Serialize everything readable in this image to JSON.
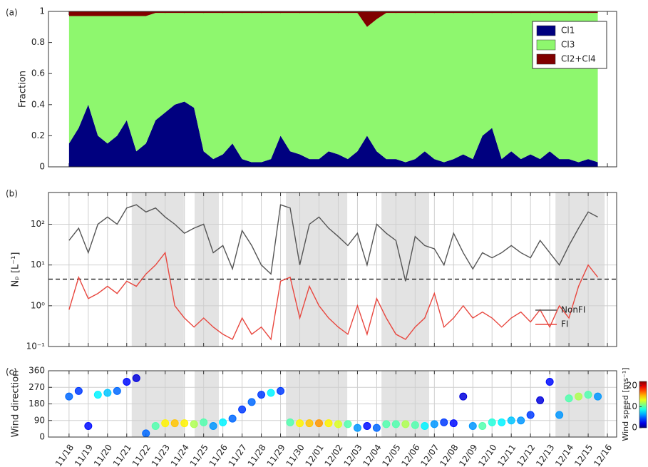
{
  "chart_data": [
    {
      "type": "area",
      "panel_label": "(a)",
      "ylabel": "Fraction",
      "x": [
        0,
        0.5,
        1,
        1.5,
        2,
        2.5,
        3,
        3.5,
        4,
        4.5,
        5,
        5.5,
        6,
        6.5,
        7,
        7.5,
        8,
        8.5,
        9,
        9.5,
        10,
        10.5,
        11,
        11.5,
        12,
        12.5,
        13,
        13.5,
        14,
        14.5,
        15,
        15.5,
        16,
        16.5,
        17,
        17.5,
        18,
        18.5,
        19,
        19.5,
        20,
        20.5,
        21,
        21.5,
        22,
        22.5,
        23,
        23.5,
        24,
        24.5,
        25,
        25.5,
        26,
        26.5,
        27,
        27.5
      ],
      "series": [
        {
          "name": "Cl1",
          "color": "#00007f",
          "values": [
            0.15,
            0.25,
            0.4,
            0.2,
            0.15,
            0.2,
            0.3,
            0.1,
            0.15,
            0.3,
            0.35,
            0.4,
            0.42,
            0.38,
            0.1,
            0.05,
            0.08,
            0.15,
            0.05,
            0.03,
            0.03,
            0.05,
            0.2,
            0.1,
            0.08,
            0.05,
            0.05,
            0.1,
            0.08,
            0.05,
            0.1,
            0.2,
            0.1,
            0.05,
            0.05,
            0.03,
            0.05,
            0.1,
            0.05,
            0.03,
            0.05,
            0.08,
            0.05,
            0.2,
            0.25,
            0.05,
            0.1,
            0.05,
            0.08,
            0.05,
            0.1,
            0.05,
            0.05,
            0.03,
            0.05,
            0.03
          ]
        },
        {
          "name": "Cl3",
          "color": "#8ef76e",
          "values": [
            0.82,
            0.72,
            0.57,
            0.77,
            0.82,
            0.77,
            0.67,
            0.87,
            0.82,
            0.69,
            0.64,
            0.59,
            0.57,
            0.61,
            0.89,
            0.94,
            0.91,
            0.84,
            0.94,
            0.96,
            0.96,
            0.94,
            0.79,
            0.89,
            0.91,
            0.94,
            0.94,
            0.89,
            0.91,
            0.94,
            0.89,
            0.7,
            0.85,
            0.94,
            0.94,
            0.96,
            0.94,
            0.89,
            0.94,
            0.96,
            0.94,
            0.91,
            0.94,
            0.79,
            0.74,
            0.94,
            0.89,
            0.94,
            0.91,
            0.94,
            0.89,
            0.94,
            0.94,
            0.96,
            0.94,
            0.96
          ]
        },
        {
          "name": "Cl2+Cl4",
          "color": "#800000",
          "values": [
            0.03,
            0.03,
            0.03,
            0.03,
            0.03,
            0.03,
            0.03,
            0.03,
            0.03,
            0.01,
            0.01,
            0.01,
            0.01,
            0.01,
            0.01,
            0.01,
            0.01,
            0.01,
            0.01,
            0.01,
            0.01,
            0.01,
            0.01,
            0.01,
            0.01,
            0.01,
            0.01,
            0.01,
            0.01,
            0.01,
            0.01,
            0.1,
            0.05,
            0.01,
            0.01,
            0.01,
            0.01,
            0.01,
            0.01,
            0.01,
            0.01,
            0.01,
            0.01,
            0.01,
            0.01,
            0.01,
            0.01,
            0.01,
            0.01,
            0.01,
            0.01,
            0.01,
            0.01,
            0.01,
            0.01,
            0.01
          ]
        }
      ],
      "xlim": [
        -1.07,
        28.48
      ],
      "xticks": [
        0,
        1,
        2,
        3,
        4,
        5,
        6,
        7,
        8,
        9,
        10,
        11,
        12,
        13,
        14,
        15,
        16,
        17,
        18,
        19,
        20,
        21,
        22,
        23,
        24,
        25,
        26,
        27,
        28
      ],
      "ylim": [
        0,
        1
      ],
      "yticks": [
        0,
        0.2,
        0.4,
        0.6,
        0.8,
        1
      ],
      "grid": false,
      "legend": "upper right"
    },
    {
      "type": "line",
      "panel_label": "(b)",
      "ylabel": "Nₚ [L⁻¹]",
      "log_y": true,
      "x": [
        0,
        0.5,
        1,
        1.5,
        2,
        2.5,
        3,
        3.5,
        4,
        4.5,
        5,
        5.5,
        6,
        6.5,
        7,
        7.5,
        8,
        8.5,
        9,
        9.5,
        10,
        10.5,
        11,
        11.5,
        12,
        12.5,
        13,
        13.5,
        14,
        14.5,
        15,
        15.5,
        16,
        16.5,
        17,
        17.5,
        18,
        18.5,
        19,
        19.5,
        20,
        20.5,
        21,
        21.5,
        22,
        22.5,
        23,
        23.5,
        24,
        24.5,
        25,
        25.5,
        26,
        26.5,
        27,
        27.5
      ],
      "series": [
        {
          "name": "NonFI",
          "color": "#555555",
          "values": [
            40,
            80,
            20,
            100,
            150,
            100,
            250,
            300,
            200,
            250,
            150,
            100,
            60,
            80,
            100,
            20,
            30,
            8,
            70,
            30,
            10,
            6,
            300,
            250,
            10,
            100,
            150,
            80,
            50,
            30,
            60,
            10,
            100,
            60,
            40,
            4,
            50,
            30,
            25,
            10,
            60,
            20,
            8,
            20,
            15,
            20,
            30,
            20,
            15,
            40,
            20,
            10,
            30,
            80,
            200,
            150
          ]
        },
        {
          "name": "FI",
          "color": "#e8473f",
          "values": [
            0.8,
            5,
            1.5,
            2,
            3,
            2,
            4,
            3,
            6,
            10,
            20,
            1,
            0.5,
            0.3,
            0.5,
            0.3,
            0.2,
            0.15,
            0.5,
            0.2,
            0.3,
            0.15,
            4,
            5,
            0.5,
            3,
            1,
            0.5,
            0.3,
            0.2,
            1,
            0.2,
            1.5,
            0.5,
            0.2,
            0.15,
            0.3,
            0.5,
            2,
            0.3,
            0.5,
            1,
            0.5,
            0.7,
            0.5,
            0.3,
            0.5,
            0.7,
            0.4,
            0.8,
            0.3,
            1,
            0.5,
            3,
            10,
            5
          ]
        }
      ],
      "threshold": 4.5,
      "shaded": [
        [
          3.26,
          5.97
        ],
        [
          6.53,
          7.79
        ],
        [
          11.28,
          14.47
        ],
        [
          16.25,
          18.73
        ],
        [
          25.3,
          27.86
        ]
      ],
      "xlim": [
        -1.07,
        28.48
      ],
      "xticks": [
        0,
        1,
        2,
        3,
        4,
        5,
        6,
        7,
        8,
        9,
        10,
        11,
        12,
        13,
        14,
        15,
        16,
        17,
        18,
        19,
        20,
        21,
        22,
        23,
        24,
        25,
        26,
        27,
        28
      ],
      "ylim": [
        0.1,
        600
      ],
      "yticks": [
        {
          "value": 0.1,
          "label": "10⁻¹"
        },
        {
          "value": 1,
          "label": "10⁰"
        },
        {
          "value": 10,
          "label": "10¹"
        },
        {
          "value": 100,
          "label": "10²"
        }
      ],
      "grid": true,
      "legend": "lower right"
    },
    {
      "type": "scatter",
      "panel_label": "(c)",
      "ylabel": "Wind direction",
      "colorbar_label": "Wind speed [ms⁻¹]",
      "colormap": "jet",
      "x": [
        0,
        0.5,
        1,
        1.5,
        2,
        2.5,
        3,
        3.5,
        4,
        4.5,
        5,
        5.5,
        6,
        6.5,
        7,
        7.5,
        8,
        8.5,
        9,
        9.5,
        10,
        10.5,
        11,
        11.5,
        12,
        12.5,
        13,
        13.5,
        14,
        14.5,
        15,
        15.5,
        16,
        16.5,
        17,
        17.5,
        18,
        18.5,
        19,
        19.5,
        20,
        20.5,
        21,
        21.5,
        22,
        22.5,
        23,
        23.5,
        24,
        24.5,
        25,
        25.5,
        26,
        26.5,
        27,
        27.5
      ],
      "values": [
        220,
        250,
        60,
        230,
        240,
        250,
        300,
        320,
        20,
        60,
        75,
        75,
        75,
        70,
        80,
        60,
        80,
        100,
        150,
        190,
        230,
        240,
        250,
        80,
        75,
        75,
        75,
        75,
        70,
        70,
        50,
        60,
        50,
        70,
        70,
        70,
        65,
        60,
        70,
        80,
        75,
        220,
        60,
        60,
        80,
        80,
        90,
        90,
        120,
        200,
        300,
        120,
        210,
        220,
        230,
        220
      ],
      "speed": [
        5,
        4,
        3,
        8,
        7,
        5,
        3,
        2,
        5,
        10,
        14,
        15,
        14,
        12,
        10,
        6,
        8,
        5,
        4,
        5,
        4,
        8,
        4,
        10,
        14,
        15,
        16,
        14,
        13,
        10,
        6,
        3,
        5,
        10,
        10,
        12,
        10,
        8,
        6,
        4,
        3,
        2,
        6,
        10,
        9,
        8,
        7,
        6,
        4,
        2,
        3,
        6,
        10,
        12,
        10,
        6
      ],
      "clim": [
        0,
        22
      ],
      "cticks": [
        0,
        10,
        20
      ],
      "shaded": [
        [
          3.26,
          5.97
        ],
        [
          6.53,
          7.79
        ],
        [
          11.28,
          14.47
        ],
        [
          16.25,
          18.73
        ],
        [
          25.3,
          27.86
        ]
      ],
      "xlim": [
        -1.07,
        28.48
      ],
      "xticks": [
        {
          "value": 0,
          "label": "11/18"
        },
        {
          "value": 1,
          "label": "11/19"
        },
        {
          "value": 2,
          "label": "11/20"
        },
        {
          "value": 3,
          "label": "11/21"
        },
        {
          "value": 4,
          "label": "11/22"
        },
        {
          "value": 5,
          "label": "11/23"
        },
        {
          "value": 6,
          "label": "11/24"
        },
        {
          "value": 7,
          "label": "11/25"
        },
        {
          "value": 8,
          "label": "11/26"
        },
        {
          "value": 9,
          "label": "11/27"
        },
        {
          "value": 10,
          "label": "11/28"
        },
        {
          "value": 11,
          "label": "11/29"
        },
        {
          "value": 12,
          "label": "11/30"
        },
        {
          "value": 13,
          "label": "12/01"
        },
        {
          "value": 14,
          "label": "12/02"
        },
        {
          "value": 15,
          "label": "12/03"
        },
        {
          "value": 16,
          "label": "12/04"
        },
        {
          "value": 17,
          "label": "12/05"
        },
        {
          "value": 18,
          "label": "12/06"
        },
        {
          "value": 19,
          "label": "12/07"
        },
        {
          "value": 20,
          "label": "12/08"
        },
        {
          "value": 21,
          "label": "12/09"
        },
        {
          "value": 22,
          "label": "12/10"
        },
        {
          "value": 23,
          "label": "12/11"
        },
        {
          "value": 24,
          "label": "12/12"
        },
        {
          "value": 25,
          "label": "12/13"
        },
        {
          "value": 26,
          "label": "12/14"
        },
        {
          "value": 27,
          "label": "12/15"
        },
        {
          "value": 28,
          "label": "12/16"
        }
      ],
      "ylim": [
        0,
        360
      ],
      "yticks": [
        0,
        90,
        180,
        270,
        360
      ],
      "grid": true
    }
  ]
}
